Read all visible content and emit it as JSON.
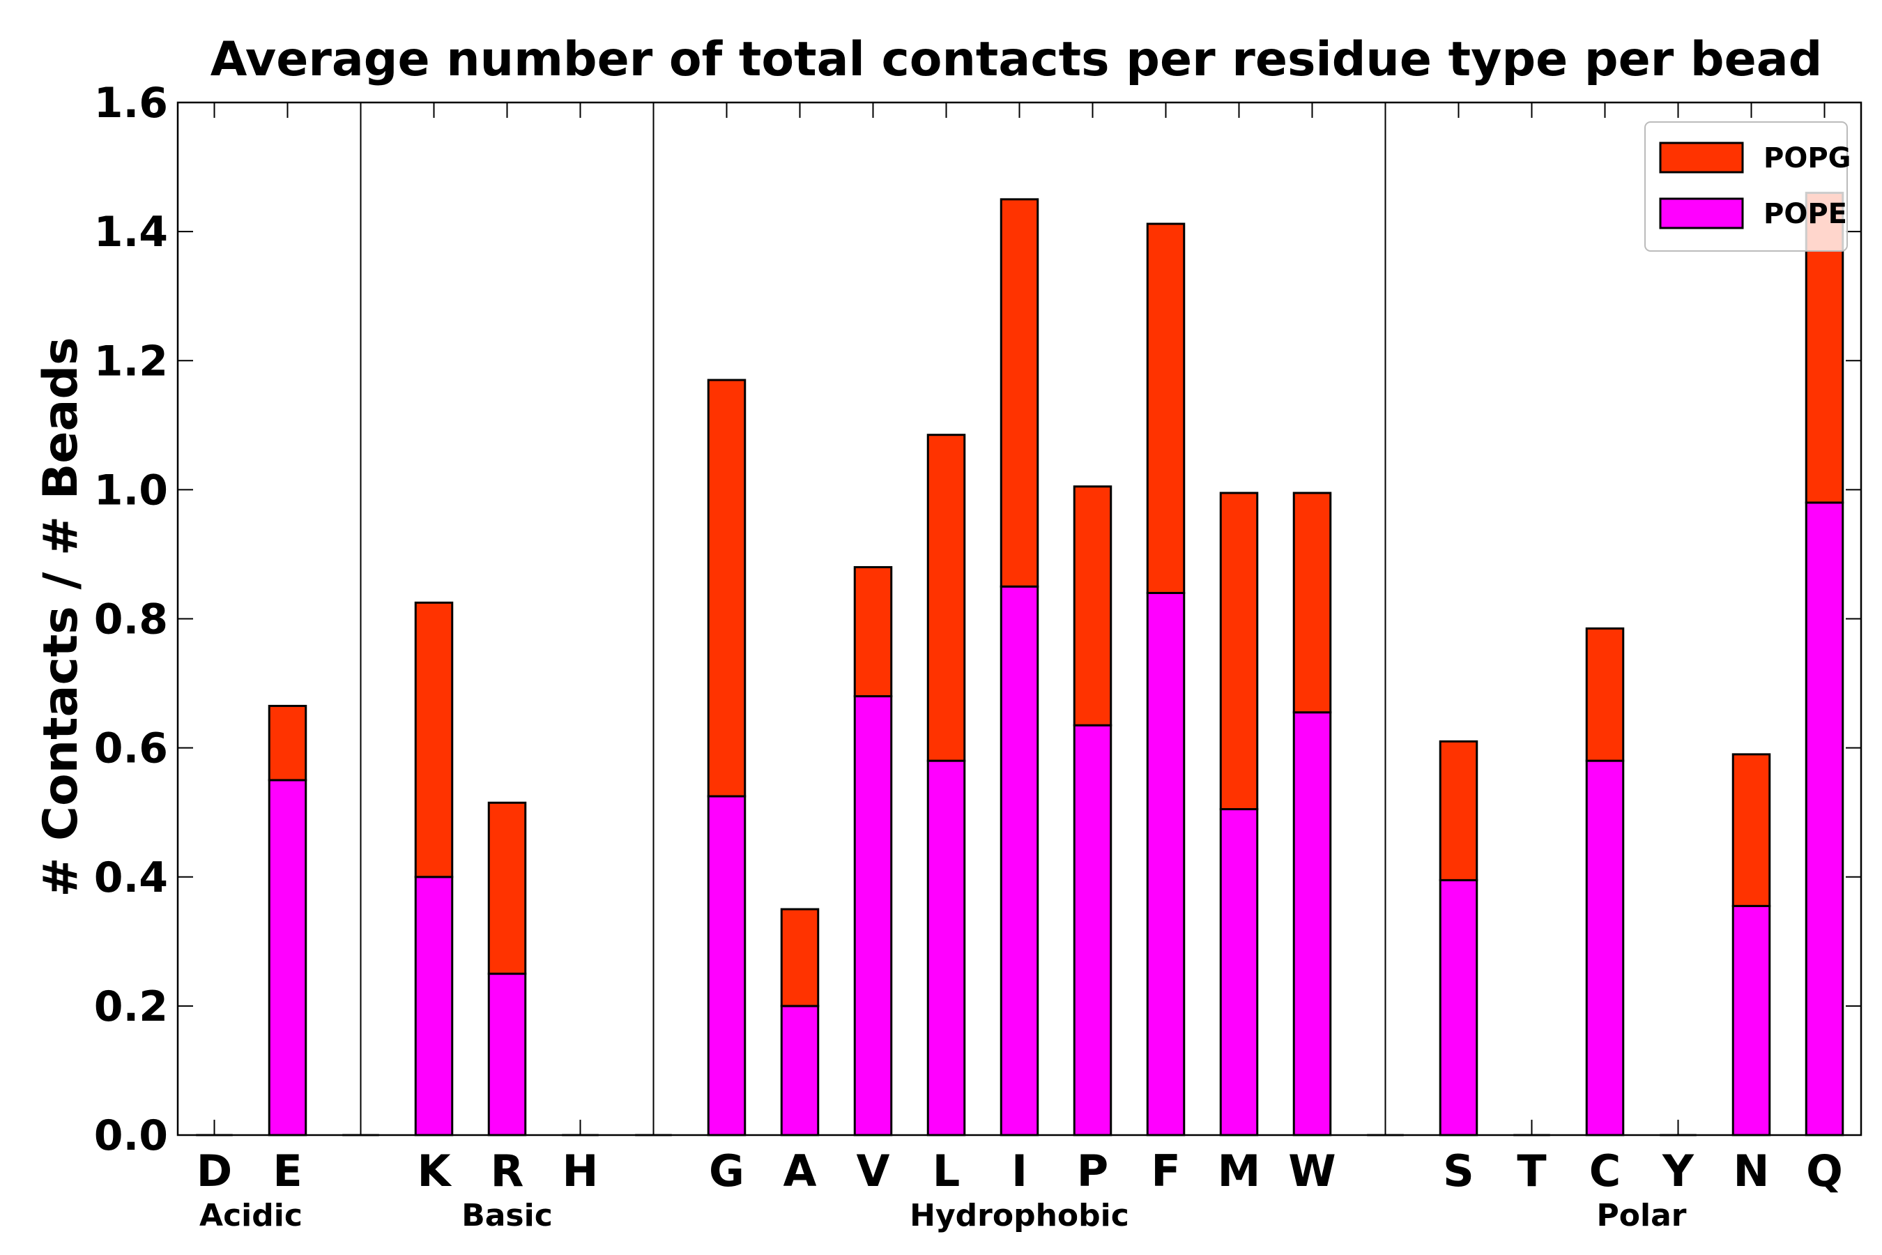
{
  "chart_data": {
    "type": "bar",
    "stacked": true,
    "title": "Average number of total contacts per residue type per bead",
    "xlabel": "",
    "ylabel": "# Contacts / # Beads",
    "ylim": [
      0,
      1.6
    ],
    "yticks": [
      "0.0",
      "0.2",
      "0.4",
      "0.6",
      "0.8",
      "1.0",
      "1.2",
      "1.4",
      "1.6"
    ],
    "categories": [
      "D",
      "E",
      "",
      "K",
      "R",
      "H",
      "",
      "G",
      "A",
      "V",
      "L",
      "I",
      "P",
      "F",
      "M",
      "W",
      "",
      "S",
      "T",
      "C",
      "Y",
      "N",
      "Q"
    ],
    "groups": [
      {
        "name": "Acidic",
        "members": [
          "D",
          "E"
        ]
      },
      {
        "name": "Basic",
        "members": [
          "K",
          "R",
          "H"
        ]
      },
      {
        "name": "Hydrophobic",
        "members": [
          "G",
          "A",
          "V",
          "L",
          "I",
          "P",
          "F",
          "M",
          "W"
        ]
      },
      {
        "name": "Polar",
        "members": [
          "S",
          "T",
          "C",
          "Y",
          "N",
          "Q"
        ]
      }
    ],
    "series": [
      {
        "name": "POPE",
        "color": "#ff00ff",
        "values": [
          0,
          0.55,
          0,
          0.4,
          0.25,
          0,
          0,
          0.525,
          0.2,
          0.68,
          0.58,
          0.85,
          0.635,
          0.84,
          0.505,
          0.655,
          0,
          0.395,
          0,
          0.58,
          0,
          0.355,
          0.98
        ]
      },
      {
        "name": "POPG",
        "color": "#ff3300",
        "values": [
          0,
          0.115,
          0,
          0.425,
          0.265,
          0,
          0,
          0.645,
          0.15,
          0.2,
          0.505,
          0.6,
          0.37,
          0.572,
          0.49,
          0.34,
          0,
          0.215,
          0,
          0.205,
          0,
          0.235,
          0.48
        ]
      }
    ],
    "legend": {
      "position": "top-right",
      "entries": [
        "POPG",
        "POPE"
      ]
    },
    "grid": false
  }
}
